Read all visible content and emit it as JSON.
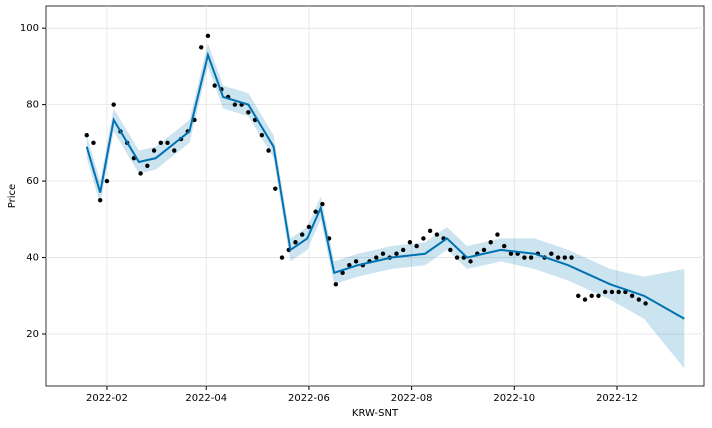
{
  "chart_data": {
    "type": "line",
    "x_label": "KRW-SNT",
    "y_label": "Price",
    "xlim": [
      -5.2,
      385.7
    ],
    "ylim": [
      6.4,
      105.8
    ],
    "xticks": [
      {
        "value": 31,
        "label": "2022-02"
      },
      {
        "value": 90,
        "label": "2022-04"
      },
      {
        "value": 151,
        "label": "2022-06"
      },
      {
        "value": 212,
        "label": "2022-08"
      },
      {
        "value": 273,
        "label": "2022-10"
      },
      {
        "value": 334,
        "label": "2022-12"
      }
    ],
    "yticks": [
      20,
      40,
      60,
      80,
      100
    ],
    "grid": true,
    "observed": {
      "color": "#000000",
      "x": [
        19,
        23,
        27,
        31,
        35,
        39,
        43,
        47,
        51,
        55,
        59,
        63,
        67,
        71,
        75,
        79,
        83,
        87,
        91,
        95,
        99,
        103,
        107,
        111,
        115,
        119,
        123,
        127,
        131,
        135,
        139,
        143,
        147,
        151,
        155,
        159,
        163,
        167,
        171,
        175,
        179,
        183,
        187,
        191,
        195,
        199,
        203,
        207,
        211,
        215,
        219,
        223,
        227,
        231,
        235,
        239,
        243,
        247,
        251,
        255,
        259,
        263,
        267,
        271,
        275,
        279,
        283,
        287,
        291,
        295,
        299,
        303,
        307,
        311,
        315,
        319,
        323,
        327,
        331,
        335,
        339,
        343,
        347,
        351
      ],
      "values": [
        72,
        70,
        55,
        60,
        80,
        73,
        70,
        66,
        62,
        64,
        68,
        70,
        70,
        68,
        71,
        73,
        76,
        95,
        98,
        85,
        84,
        82,
        80,
        80,
        78,
        76,
        72,
        68,
        58,
        40,
        42,
        44,
        46,
        48,
        52,
        54,
        45,
        33,
        36,
        38,
        39,
        38,
        39,
        40,
        41,
        40,
        41,
        42,
        44,
        43,
        45,
        47,
        46,
        45,
        42,
        40,
        40,
        39,
        41,
        42,
        44,
        46,
        43,
        41,
        41,
        40,
        40,
        41,
        40,
        41,
        40,
        40,
        40,
        30,
        29,
        30,
        30,
        31,
        31,
        31,
        31,
        30,
        29,
        28
      ]
    },
    "forecast": {
      "color": "#0072b2",
      "band_color": "#0072b2",
      "x": [
        19,
        27,
        35,
        50,
        60,
        80,
        91,
        100,
        115,
        130,
        140,
        150,
        158,
        166,
        180,
        200,
        220,
        233,
        245,
        265,
        285,
        305,
        330,
        350,
        374
      ],
      "values": [
        69,
        57,
        76,
        65,
        66,
        73,
        93,
        82,
        80,
        69,
        42,
        45,
        53,
        36,
        38,
        40,
        41,
        45,
        40,
        42,
        41,
        38,
        33,
        30,
        24
      ],
      "lower": [
        66,
        54,
        73,
        62,
        63,
        70,
        90,
        79,
        77,
        66,
        39,
        42,
        50,
        33,
        35,
        37,
        38,
        42,
        37,
        39,
        37,
        34,
        29,
        24,
        11
      ],
      "upper": [
        72,
        60,
        79,
        68,
        69,
        76,
        96,
        85,
        83,
        72,
        45,
        48,
        56,
        39,
        41,
        43,
        44,
        48,
        43,
        45,
        45,
        42,
        37,
        35,
        37
      ]
    }
  }
}
